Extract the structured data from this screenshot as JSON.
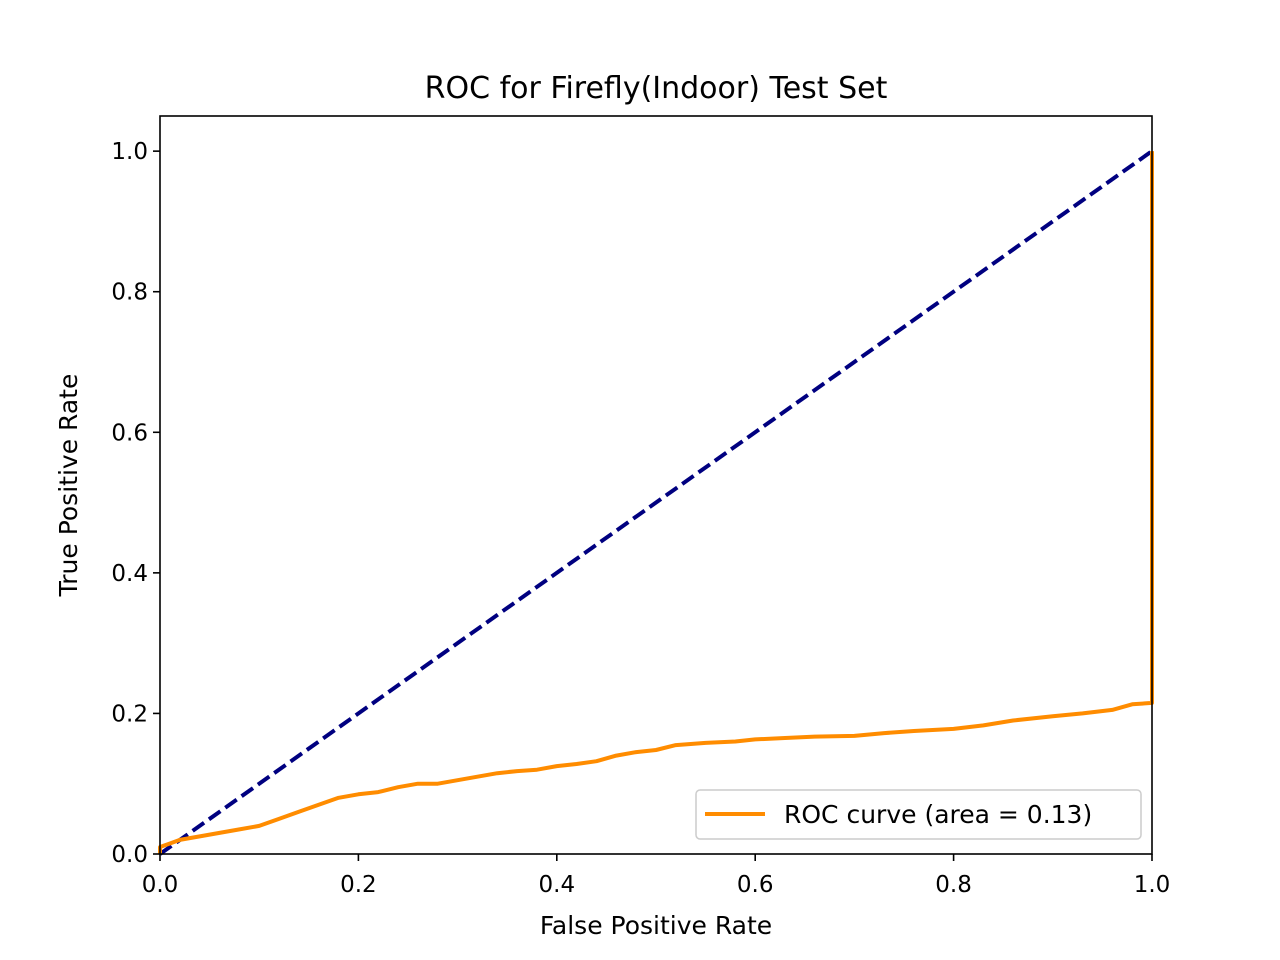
{
  "chart_data": {
    "type": "line",
    "title": "ROC for Firefly(Indoor) Test Set",
    "xlabel": "False Positive Rate",
    "ylabel": "True Positive Rate",
    "xlim": [
      0.0,
      1.0
    ],
    "ylim": [
      0.0,
      1.05
    ],
    "x_ticks": [
      "0.0",
      "0.2",
      "0.4",
      "0.6",
      "0.8",
      "1.0"
    ],
    "y_ticks": [
      "0.0",
      "0.2",
      "0.4",
      "0.6",
      "0.8",
      "1.0"
    ],
    "grid": false,
    "legend_position": "lower-right",
    "series": [
      {
        "name": "ROC curve (area = 0.13)",
        "color": "#ff8c00",
        "style": "solid",
        "x": [
          0.0,
          0.0,
          0.01,
          0.02,
          0.04,
          0.06,
          0.08,
          0.1,
          0.12,
          0.14,
          0.16,
          0.18,
          0.2,
          0.22,
          0.24,
          0.26,
          0.28,
          0.3,
          0.32,
          0.34,
          0.36,
          0.38,
          0.4,
          0.42,
          0.44,
          0.46,
          0.48,
          0.5,
          0.52,
          0.55,
          0.58,
          0.6,
          0.63,
          0.66,
          0.7,
          0.73,
          0.76,
          0.8,
          0.83,
          0.86,
          0.9,
          0.93,
          0.96,
          0.98,
          1.0,
          1.0
        ],
        "y": [
          0.0,
          0.01,
          0.015,
          0.02,
          0.025,
          0.03,
          0.035,
          0.04,
          0.05,
          0.06,
          0.07,
          0.08,
          0.085,
          0.088,
          0.095,
          0.1,
          0.1,
          0.105,
          0.11,
          0.115,
          0.118,
          0.12,
          0.125,
          0.128,
          0.132,
          0.14,
          0.145,
          0.148,
          0.155,
          0.158,
          0.16,
          0.163,
          0.165,
          0.167,
          0.168,
          0.172,
          0.175,
          0.178,
          0.183,
          0.19,
          0.196,
          0.2,
          0.205,
          0.213,
          0.215,
          1.0
        ]
      },
      {
        "name": "",
        "color": "#000080",
        "style": "dashed",
        "x": [
          0.0,
          1.0
        ],
        "y": [
          0.0,
          1.0
        ]
      }
    ]
  }
}
